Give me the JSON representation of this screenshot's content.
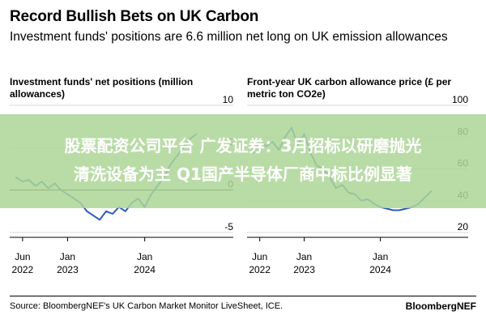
{
  "header": {
    "title": "Record Bullish Bets on UK Carbon",
    "subtitle": "Investment funds' positions are 6.6 million net long on UK emission allowances"
  },
  "overlay": {
    "line1": "股票配资公司平台 广发证券：3月招标以研磨抛光",
    "line2": "清洗设备为主 Q1国产半导体厂商中标比例显著",
    "band_color": "#add698"
  },
  "footer": {
    "source": "Source: BloombergNEF's UK Carbon Market Monitor LiveSheet, ICE.",
    "brand": "BloombergNEF"
  },
  "chart_data": [
    {
      "type": "line",
      "title": "Investment funds' net positions (million allowances)",
      "yticks": [
        10,
        5,
        0,
        -5
      ],
      "ylim": [
        -5,
        10
      ],
      "xticks": [
        {
          "x": "2022-06",
          "line1": "Jun",
          "line2": "2022"
        },
        {
          "x": "2023-01",
          "line1": "Jan",
          "line2": "2023"
        },
        {
          "x": "2024-01",
          "line1": "Jan",
          "line2": "2024"
        }
      ],
      "xlim": [
        "2022-04",
        "2024-11"
      ],
      "grid": true,
      "series": [
        {
          "color": "#2b5bb8",
          "x": [
            "2022-05",
            "2022-06",
            "2022-07",
            "2022-08",
            "2022-09",
            "2022-10",
            "2022-11",
            "2022-12",
            "2023-01",
            "2023-02",
            "2023-03",
            "2023-04",
            "2023-05",
            "2023-06",
            "2023-07",
            "2023-08",
            "2023-09",
            "2023-10",
            "2023-11",
            "2023-12",
            "2024-01",
            "2024-02",
            "2024-03",
            "2024-04",
            "2024-05",
            "2024-06",
            "2024-07",
            "2024-08",
            "2024-09"
          ],
          "values": [
            1.5,
            1.0,
            1.2,
            0.5,
            1.0,
            0.2,
            0.8,
            0.0,
            -0.5,
            -1.0,
            -1.5,
            -2.5,
            -3.0,
            -3.5,
            -2.5,
            -2.8,
            -2.0,
            -2.5,
            -1.5,
            -1.0,
            -2.0,
            -0.5,
            0.5,
            1.5,
            3.0,
            4.0,
            5.0,
            6.0,
            6.6
          ]
        }
      ]
    },
    {
      "type": "line",
      "title": "Front-year UK carbon allowance price (£ per metric ton CO2e)",
      "yticks": [
        100,
        80,
        60,
        40,
        20
      ],
      "ylim": [
        20,
        100
      ],
      "xticks": [
        {
          "x": "2022-06",
          "line1": "Jun",
          "line2": "2022"
        },
        {
          "x": "2023-01",
          "line1": "Jan",
          "line2": "2023"
        },
        {
          "x": "2024-01",
          "line1": "Jan",
          "line2": "2024"
        }
      ],
      "xlim": [
        "2022-04",
        "2024-11"
      ],
      "grid": true,
      "series": [
        {
          "color": "#2b5bb8",
          "x": [
            "2022-05",
            "2022-06",
            "2022-07",
            "2022-08",
            "2022-09",
            "2022-10",
            "2022-11",
            "2022-12",
            "2023-01",
            "2023-02",
            "2023-03",
            "2023-04",
            "2023-05",
            "2023-06",
            "2023-07",
            "2023-08",
            "2023-09",
            "2023-10",
            "2023-11",
            "2023-12",
            "2024-01",
            "2024-02",
            "2024-03",
            "2024-04",
            "2024-05",
            "2024-06",
            "2024-07",
            "2024-08",
            "2024-09"
          ],
          "values": [
            70,
            78,
            74,
            77,
            72,
            80,
            86,
            75,
            82,
            70,
            62,
            60,
            55,
            48,
            50,
            45,
            44,
            40,
            41,
            38,
            36,
            35,
            34,
            34,
            35,
            36,
            38,
            42,
            46
          ]
        }
      ]
    }
  ]
}
